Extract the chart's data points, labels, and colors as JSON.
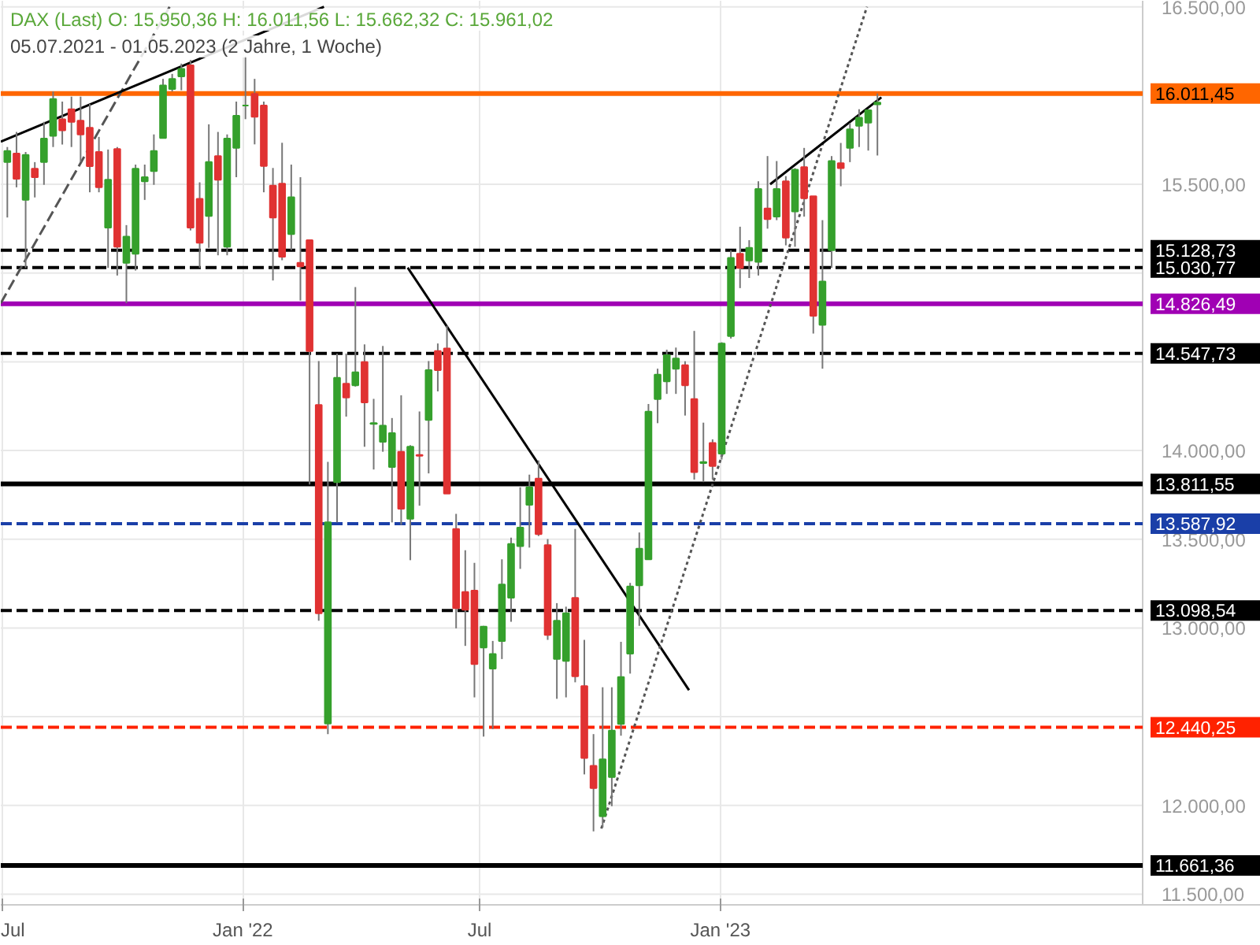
{
  "chart_data": {
    "type": "candlestick",
    "title": "DAX (Last)  O: 15.950,36  H: 16.011,56  L: 15.662,32  C: 15.961,02",
    "subtitle": "05.07.2021 - 01.05.2023   (2 Jahre, 1 Woche)",
    "x": [
      "2021-07-05",
      "2021-07-12",
      "2021-07-19",
      "2021-07-26",
      "2021-08-02",
      "2021-08-09",
      "2021-08-16",
      "2021-08-23",
      "2021-08-30",
      "2021-09-06",
      "2021-09-13",
      "2021-09-20",
      "2021-09-27",
      "2021-10-04",
      "2021-10-11",
      "2021-10-18",
      "2021-10-25",
      "2021-11-01",
      "2021-11-08",
      "2021-11-15",
      "2021-11-22",
      "2021-11-29",
      "2021-12-06",
      "2021-12-13",
      "2021-12-20",
      "2021-12-27",
      "2022-01-03",
      "2022-01-10",
      "2022-01-17",
      "2022-01-24",
      "2022-01-31",
      "2022-02-07",
      "2022-02-14",
      "2022-02-21",
      "2022-02-28",
      "2022-03-07",
      "2022-03-14",
      "2022-03-21",
      "2022-03-28",
      "2022-04-04",
      "2022-04-11",
      "2022-04-18",
      "2022-04-25",
      "2022-05-02",
      "2022-05-09",
      "2022-05-16",
      "2022-05-23",
      "2022-05-30",
      "2022-06-06",
      "2022-06-13",
      "2022-06-20",
      "2022-06-27",
      "2022-07-04",
      "2022-07-11",
      "2022-07-18",
      "2022-07-25",
      "2022-08-01",
      "2022-08-08",
      "2022-08-15",
      "2022-08-22",
      "2022-08-29",
      "2022-09-05",
      "2022-09-12",
      "2022-09-19",
      "2022-09-26",
      "2022-10-03",
      "2022-10-10",
      "2022-10-17",
      "2022-10-24",
      "2022-10-31",
      "2022-11-07",
      "2022-11-14",
      "2022-11-21",
      "2022-11-28",
      "2022-12-05",
      "2022-12-12",
      "2022-12-19",
      "2022-12-26",
      "2023-01-02",
      "2023-01-09",
      "2023-01-16",
      "2023-01-23",
      "2023-01-30",
      "2023-02-06",
      "2023-02-13",
      "2023-02-20",
      "2023-02-27",
      "2023-03-06",
      "2023-03-13",
      "2023-03-20",
      "2023-03-27",
      "2023-04-03",
      "2023-04-10",
      "2023-04-17",
      "2023-04-24",
      "2023-05-01"
    ],
    "ohlc": [
      [
        15625,
        15710,
        15313,
        15688
      ],
      [
        15673,
        15795,
        15483,
        15531
      ],
      [
        15412,
        15682,
        15029,
        15665
      ],
      [
        15588,
        15625,
        15426,
        15540
      ],
      [
        15625,
        15852,
        15497,
        15758
      ],
      [
        15773,
        16023,
        15710,
        15980
      ],
      [
        15866,
        15966,
        15724,
        15804
      ],
      [
        15923,
        15994,
        15710,
        15852
      ],
      [
        15858,
        15994,
        15625,
        15781
      ],
      [
        15818,
        15952,
        15455,
        15602
      ],
      [
        15682,
        15767,
        15455,
        15483
      ],
      [
        15256,
        15696,
        15029,
        15526
      ],
      [
        15699,
        15710,
        14986,
        15148
      ],
      [
        15057,
        15270,
        14830,
        15205
      ],
      [
        15108,
        15611,
        15014,
        15588
      ],
      [
        15517,
        15611,
        15412,
        15540
      ],
      [
        15574,
        15781,
        15497,
        15688
      ],
      [
        15761,
        16094,
        15761,
        16057
      ],
      [
        16037,
        16122,
        16023,
        16094
      ],
      [
        16108,
        16180,
        16030,
        16150
      ],
      [
        16170,
        16200,
        15240,
        15256
      ],
      [
        15418,
        15511,
        15029,
        15171
      ],
      [
        15321,
        15838,
        15142,
        15625
      ],
      [
        15659,
        15795,
        15100,
        15526
      ],
      [
        15148,
        15781,
        15100,
        15758
      ],
      [
        15705,
        15966,
        15540,
        15886
      ],
      [
        15944,
        16222,
        15867,
        15944
      ],
      [
        16009,
        16094,
        15725,
        15881
      ],
      [
        15944,
        15966,
        15455,
        15603
      ],
      [
        15492,
        15592,
        14958,
        15313
      ],
      [
        15503,
        15734,
        15072,
        15092
      ],
      [
        15219,
        15611,
        15129,
        15427
      ],
      [
        15058,
        15540,
        14845,
        15038
      ],
      [
        15185,
        15185,
        13808,
        14561
      ],
      [
        14257,
        14504,
        13041,
        13083
      ],
      [
        12462,
        13936,
        12402,
        13595
      ],
      [
        13822,
        14546,
        13595,
        14410
      ],
      [
        14376,
        14546,
        14191,
        14299
      ],
      [
        14368,
        14921,
        14360,
        14441
      ],
      [
        14498,
        14598,
        14021,
        14271
      ],
      [
        14150,
        14291,
        13893,
        14154
      ],
      [
        14049,
        14589,
        13993,
        14140
      ],
      [
        13907,
        14183,
        13595,
        14098
      ],
      [
        13993,
        14311,
        13581,
        13672
      ],
      [
        13615,
        14030,
        13382,
        14021
      ],
      [
        13975,
        14220,
        13689,
        13970
      ],
      [
        14172,
        14504,
        13871,
        14453
      ],
      [
        14561,
        14603,
        14333,
        14453
      ],
      [
        14575,
        14703,
        13757,
        13757
      ],
      [
        13558,
        13643,
        12998,
        13112
      ],
      [
        13203,
        13438,
        12899,
        13103
      ],
      [
        13211,
        13367,
        12609,
        12797
      ],
      [
        12890,
        13012,
        12388,
        13007
      ],
      [
        12771,
        12927,
        12430,
        12853
      ],
      [
        12927,
        13387,
        12825,
        13245
      ],
      [
        13171,
        13509,
        13035,
        13473
      ],
      [
        13461,
        13793,
        13333,
        13566
      ],
      [
        13694,
        13864,
        13453,
        13793
      ],
      [
        13842,
        13944,
        13518,
        13529
      ],
      [
        13467,
        13501,
        12933,
        12961
      ],
      [
        12825,
        13140,
        12601,
        13041
      ],
      [
        12814,
        13120,
        12609,
        13083
      ],
      [
        13169,
        13558,
        12694,
        12728
      ],
      [
        12672,
        12933,
        12175,
        12268
      ],
      [
        12223,
        12402,
        11854,
        12098
      ],
      [
        11939,
        12666,
        11876,
        12260
      ],
      [
        12160,
        12666,
        11996,
        12422
      ],
      [
        12459,
        12922,
        12393,
        12723
      ],
      [
        12856,
        13254,
        12743,
        13234
      ],
      [
        13240,
        13538,
        13012,
        13447
      ],
      [
        13387,
        14262,
        13387,
        14219
      ],
      [
        14290,
        14461,
        14154,
        14427
      ],
      [
        14390,
        14568,
        14319,
        14537
      ],
      [
        14461,
        14580,
        14319,
        14518
      ],
      [
        14481,
        14503,
        14197,
        14367
      ],
      [
        14290,
        14674,
        13836,
        13878
      ],
      [
        13929,
        14157,
        13822,
        13935
      ],
      [
        14043,
        14063,
        13836,
        13913
      ],
      [
        13983,
        14610,
        13949,
        14603
      ],
      [
        14645,
        15128,
        14631,
        15085
      ],
      [
        15108,
        15261,
        14915,
        15029
      ],
      [
        15071,
        15185,
        14972,
        15142
      ],
      [
        15063,
        15517,
        14986,
        15474
      ],
      [
        15364,
        15659,
        15250,
        15304
      ],
      [
        15318,
        15631,
        15298,
        15474
      ],
      [
        15517,
        15546,
        15156,
        15199
      ],
      [
        15347,
        15591,
        15148,
        15582
      ],
      [
        15597,
        15705,
        15318,
        15421
      ],
      [
        15432,
        15432,
        14659,
        14759
      ],
      [
        14708,
        15298,
        14461,
        14952
      ],
      [
        15128,
        15659,
        15029,
        15631
      ],
      [
        15619,
        15733,
        15489,
        15591
      ],
      [
        15705,
        15846,
        15625,
        15810
      ],
      [
        15830,
        15923,
        15710,
        15875
      ],
      [
        15847,
        15923,
        15690,
        15917
      ],
      [
        15950.36,
        16011.56,
        15662.32,
        15961.02
      ]
    ],
    "colors": [
      "#35a02c",
      "#e03232",
      "#35a02c",
      "#e03232",
      "#35a02c",
      "#35a02c",
      "#e03232",
      "#e03232",
      "#e03232",
      "#e03232",
      "#e03232",
      "#35a02c",
      "#e03232",
      "#35a02c",
      "#35a02c",
      "#35a02c",
      "#35a02c",
      "#35a02c",
      "#35a02c",
      "#35a02c",
      "#e03232",
      "#e03232",
      "#35a02c",
      "#e03232",
      "#35a02c",
      "#35a02c",
      "#35a02c",
      "#e03232",
      "#e03232",
      "#e03232",
      "#e03232",
      "#35a02c",
      "#e03232",
      "#e03232",
      "#e03232",
      "#35a02c",
      "#35a02c",
      "#e03232",
      "#35a02c",
      "#e03232",
      "#35a02c",
      "#35a02c",
      "#35a02c",
      "#e03232",
      "#35a02c",
      "#e03232",
      "#35a02c",
      "#e03232",
      "#e03232",
      "#e03232",
      "#e03232",
      "#e03232",
      "#35a02c",
      "#35a02c",
      "#35a02c",
      "#35a02c",
      "#35a02c",
      "#35a02c",
      "#e03232",
      "#e03232",
      "#35a02c",
      "#35a02c",
      "#e03232",
      "#e03232",
      "#e03232",
      "#35a02c",
      "#35a02c",
      "#35a02c",
      "#35a02c",
      "#35a02c",
      "#35a02c",
      "#35a02c",
      "#35a02c",
      "#35a02c",
      "#e03232",
      "#e03232",
      "#35a02c",
      "#e03232",
      "#35a02c",
      "#35a02c",
      "#e03232",
      "#35a02c",
      "#35a02c",
      "#e03232",
      "#35a02c",
      "#e03232",
      "#35a02c",
      "#e03232",
      "#e03232",
      "#35a02c",
      "#35a02c",
      "#e03232",
      "#35a02c",
      "#35a02c",
      "#35a02c",
      "#35a02c"
    ],
    "series": [
      {
        "type": "line",
        "x": [
          "2021-06-30",
          "2021-11-06"
        ],
        "values": [
          14830,
          16500
        ],
        "color": "#555555",
        "line_style": "dashed"
      },
      {
        "type": "line",
        "x": [
          "2021-06-30",
          "2022-03-04"
        ],
        "values": [
          15740,
          16500
        ],
        "color": "#000000",
        "line_style": "solid"
      },
      {
        "type": "line",
        "x": [
          "2022-05-07",
          "2022-12-08"
        ],
        "values": [
          15030,
          12650
        ],
        "color": "#000000",
        "line_style": "solid"
      },
      {
        "type": "line",
        "x": [
          "2022-10-02",
          "2023-04-23"
        ],
        "values": [
          11870,
          16500
        ],
        "color": "#555555",
        "line_style": "dotted"
      },
      {
        "type": "line",
        "x": [
          "2023-02-08",
          "2023-05-04"
        ],
        "values": [
          15500,
          15990
        ],
        "color": "#000000",
        "line_style": "solid"
      }
    ],
    "ref_lines": [
      {
        "axis": "y",
        "value": 16011.45,
        "label": "16.011,45",
        "color": "#ff6600",
        "line_style": "solid"
      },
      {
        "axis": "y",
        "value": 15128.73,
        "label": "15.128,73",
        "color": "#000000",
        "line_style": "dashed"
      },
      {
        "axis": "y",
        "value": 15030.77,
        "label": "15.030,77",
        "color": "#000000",
        "line_style": "dashed"
      },
      {
        "axis": "y",
        "value": 14826.49,
        "label": "14.826,49",
        "color": "#a000b4",
        "line_style": "solid"
      },
      {
        "axis": "y",
        "value": 14547.73,
        "label": "14.547,73",
        "color": "#000000",
        "line_style": "dashed"
      },
      {
        "axis": "y",
        "value": 13811.55,
        "label": "13.811,55",
        "color": "#000000",
        "line_style": "solid"
      },
      {
        "axis": "y",
        "value": 13587.92,
        "label": "13.587,92",
        "color": "#1a3fa8",
        "line_style": "dashed"
      },
      {
        "axis": "y",
        "value": 13098.54,
        "label": "13.098,54",
        "color": "#000000",
        "line_style": "dashed"
      },
      {
        "axis": "y",
        "value": 12440.25,
        "label": "12.440,25",
        "color": "#ff2200",
        "line_style": "dashed"
      },
      {
        "axis": "y",
        "value": 11661.36,
        "label": "11.661,36",
        "color": "#000000",
        "line_style": "solid"
      }
    ],
    "xlim": [
      "2021-06-30",
      "2024-02-18"
    ],
    "xticks": [
      {
        "value": "2021-07-01",
        "label": "Jul"
      },
      {
        "value": "2022-01-01",
        "label": "Jan '22"
      },
      {
        "value": "2022-07-01",
        "label": "Jul"
      },
      {
        "value": "2023-01-01",
        "label": "Jan '23"
      }
    ],
    "ylim": [
      11440,
      16534
    ],
    "yticks": [
      {
        "value": 11500,
        "label": "11.500,00"
      },
      {
        "value": 12000,
        "label": "12.000,00"
      },
      {
        "value": 12500,
        "label": null
      },
      {
        "value": 13000,
        "label": "13.000,00"
      },
      {
        "value": 13500,
        "label": "13.500,00"
      },
      {
        "value": 14000,
        "label": "14.000,00"
      },
      {
        "value": 14500,
        "label": null
      },
      {
        "value": 15000,
        "label": null
      },
      {
        "value": 15500,
        "label": "15.500,00"
      },
      {
        "value": 16000,
        "label": null
      },
      {
        "value": 16500,
        "label": "16.500,00"
      }
    ],
    "grid": true
  }
}
